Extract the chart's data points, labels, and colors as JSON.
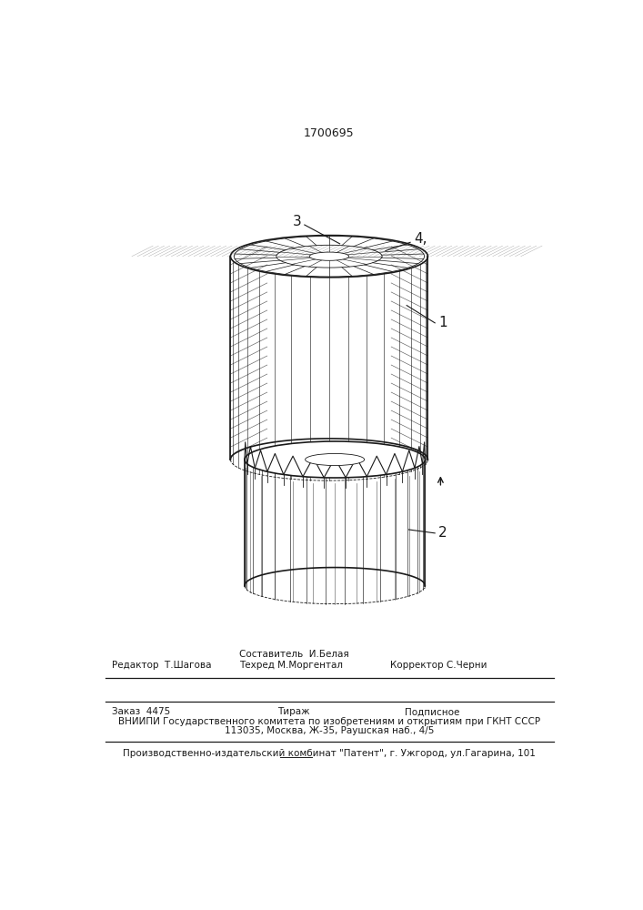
{
  "title_number": "1700695",
  "title_fontsize": 9,
  "bg_color": "#ffffff",
  "line_color": "#1a1a1a",
  "footer": {
    "line1_left": "Редактор  Т.Шагова",
    "line1_center": "Составитель  И.Белая",
    "line1_center2": "Техред М.Моргентал",
    "line1_right": "Корректор С.Черни",
    "line2_left": "Заказ  4475",
    "line2_center": "Тираж",
    "line2_right": "Подписное",
    "line3": "ВНИИПИ Государственного комитета по изобретениям и открытиям при ГКНТ СССР",
    "line4": "113035, Москва, Ж-35, Раушская наб., 4/5",
    "line5": "Производственно-издательский комбинат \"Патент\", г. Ужгород, ул.Гагарина, 101"
  }
}
